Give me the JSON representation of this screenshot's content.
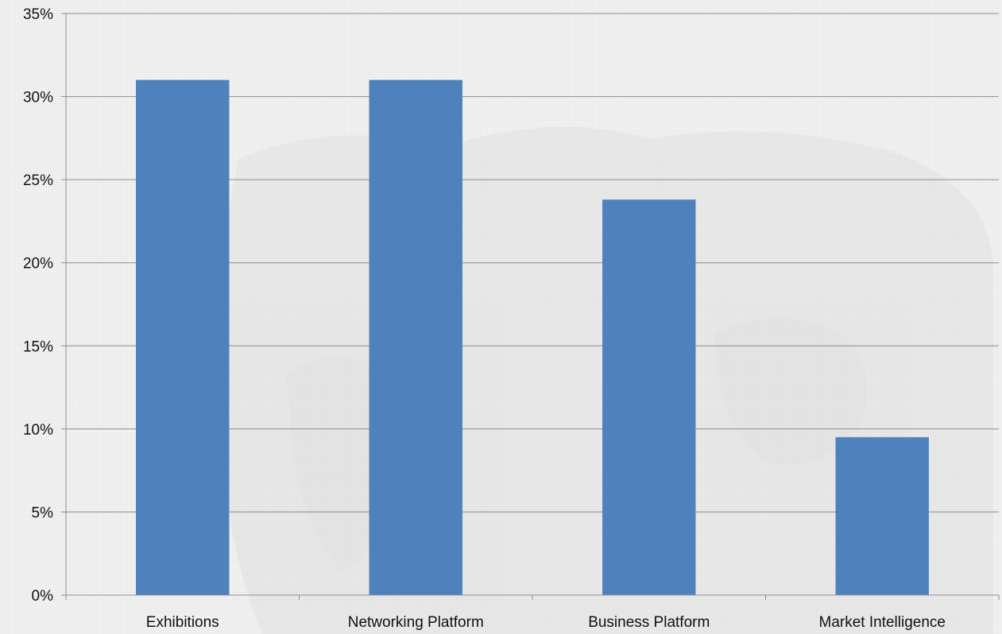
{
  "chart_data": {
    "type": "bar",
    "title": "",
    "xlabel": "",
    "ylabel": "",
    "categories": [
      "Exhibitions",
      "Networking Platform",
      "Business Platform",
      "Market Intelligence"
    ],
    "values": [
      0.31,
      0.31,
      0.238,
      0.095
    ],
    "ylim": [
      0,
      0.35
    ],
    "yticks": [
      0,
      0.05,
      0.1,
      0.15,
      0.2,
      0.25,
      0.3,
      0.35
    ],
    "ytick_labels": [
      "0%",
      "5%",
      "10%",
      "15%",
      "20%",
      "25%",
      "30%",
      "35%"
    ],
    "grid": true,
    "legend": "none",
    "bar_color": "#4f81bd",
    "gridline_color": "#8c8c8c",
    "axis_color": "#8c8c8c"
  }
}
